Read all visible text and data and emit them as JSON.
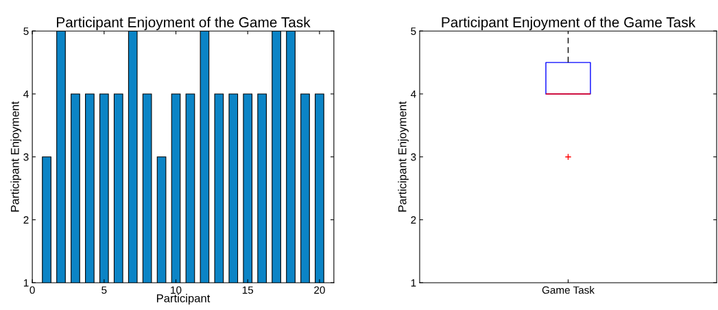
{
  "chart_data": [
    {
      "type": "bar",
      "title": "Participant Enjoyment of the Game Task",
      "xlabel": "Participant",
      "ylabel": "Participant Enjoyment",
      "x": [
        1,
        2,
        3,
        4,
        5,
        6,
        7,
        8,
        9,
        10,
        11,
        12,
        13,
        14,
        15,
        16,
        17,
        18,
        19,
        20
      ],
      "values": [
        3,
        5,
        4,
        4,
        4,
        4,
        5,
        4,
        3,
        4,
        4,
        5,
        4,
        4,
        4,
        4,
        5,
        5,
        4,
        4
      ],
      "color": "#0b84c6",
      "xlim": [
        0,
        21
      ],
      "xticks": [
        0,
        5,
        10,
        15,
        20
      ],
      "ylim": [
        1,
        5
      ],
      "yticks": [
        1,
        2,
        3,
        4,
        5
      ],
      "grid": false,
      "legend": false
    },
    {
      "type": "box",
      "title": "Participant Enjoyment of the Game Task",
      "ylabel": "Participant Enjoyment",
      "categories": [
        "Game Task"
      ],
      "boxes": [
        {
          "low": 4,
          "q1": 4,
          "median": 4,
          "q3": 4.5,
          "high": 5,
          "outliers": [
            3
          ]
        }
      ],
      "color": "#0000ff",
      "ylim": [
        1,
        5
      ],
      "yticks": [
        1,
        2,
        3,
        4,
        5
      ],
      "grid": false,
      "legend": false
    }
  ]
}
